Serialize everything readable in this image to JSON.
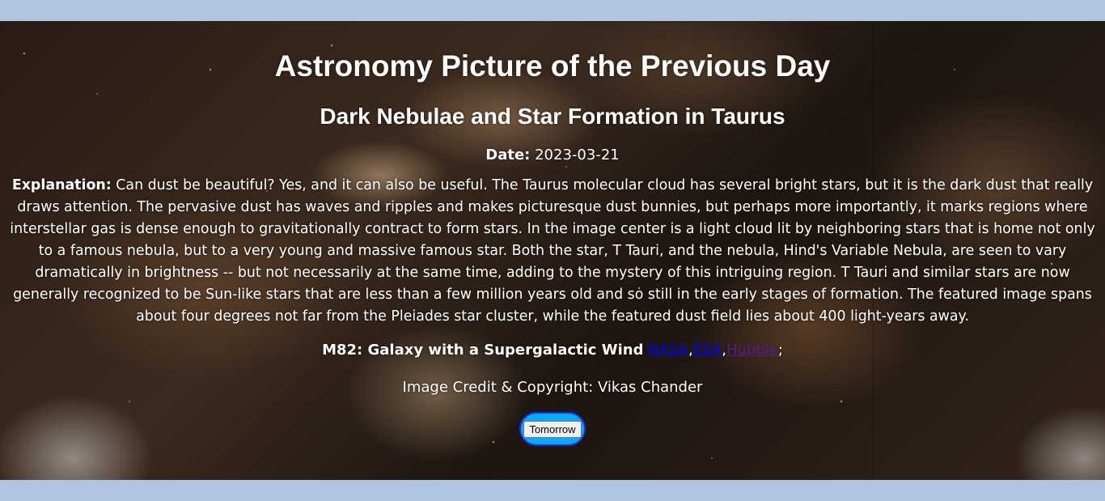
{
  "page": {
    "title": "Astronomy Picture of the Previous Day",
    "subtitle": "Dark Nebulae and Star Formation in Taurus",
    "date_label": "Date:",
    "date_value": "2023-03-21",
    "explanation_label": "Explanation:",
    "explanation_text": "Can dust be beautiful? Yes, and it can also be useful. The Taurus molecular cloud has several bright stars, but it is the dark dust that really draws attention. The pervasive dust has waves and ripples and makes picturesque dust bunnies, but perhaps more importantly, it marks regions where interstellar gas is dense enough to gravitationally contract to form stars. In the image center is a light cloud lit by neighboring stars that is home not only to a famous nebula, but to a very young and massive famous star. Both the star, T Tauri, and the nebula, Hind's Variable Nebula, are seen to vary dramatically in brightness -- but not necessarily at the same time, adding to the mystery of this intriguing region. T Tauri and similar stars are now generally recognized to be Sun-like stars that are less than a few million years old and so still in the early stages of formation. The featured image spans about four degrees not far from the Pleiades star cluster, while the featured dust field lies about 400 light-years away.",
    "related_title": "M82: Galaxy with a Supergalactic Wind",
    "related_links": [
      {
        "label": "NASA"
      },
      {
        "label": "ESA"
      },
      {
        "label": "Hubble"
      }
    ],
    "credit": "Image Credit & Copyright: Vikas Chander",
    "tomorrow_button": "Tomorrow"
  },
  "colors": {
    "frame_background": "#b0c4de",
    "link": "#0000ee",
    "link_visited": "#551a8b",
    "button_ring": "#00aaff",
    "button_ring_border": "#2a2ad8"
  }
}
